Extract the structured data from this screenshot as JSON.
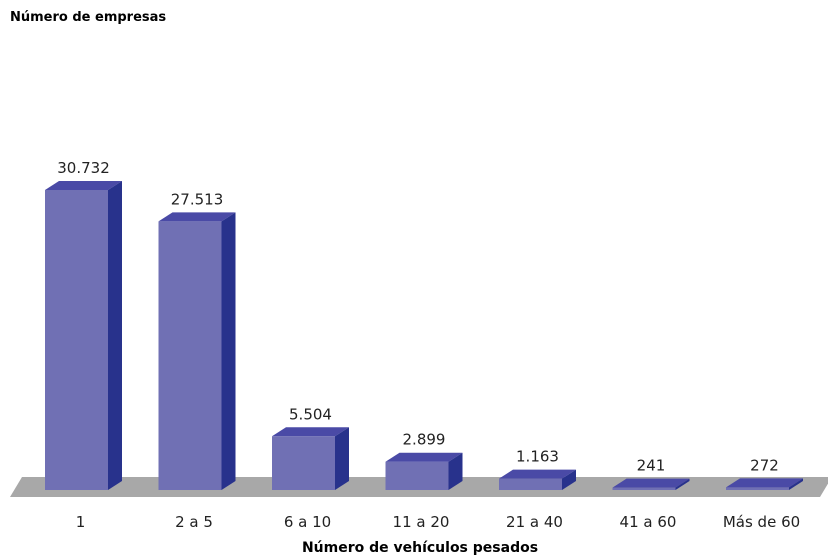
{
  "chart_data": {
    "type": "bar",
    "ylabel": "Número de empresas",
    "xlabel": "Número de vehículos pesados",
    "categories": [
      "1",
      "2 a 5",
      "6 a 10",
      "11 a 20",
      "21 a 40",
      "41 a 60",
      "Más de 60"
    ],
    "values": [
      30732,
      27513,
      5504,
      2899,
      1163,
      241,
      272
    ],
    "value_labels": [
      "30.732",
      "27.513",
      "5.504",
      "2.899",
      "1.163",
      "241",
      "272"
    ],
    "ylim": [
      0,
      30732
    ],
    "grid": false,
    "legend": "none",
    "colors": {
      "bar_front": "#7070B4",
      "bar_top": "#4A4AA6",
      "bar_side": "#28328C",
      "floor": "#A8A8A8"
    }
  }
}
